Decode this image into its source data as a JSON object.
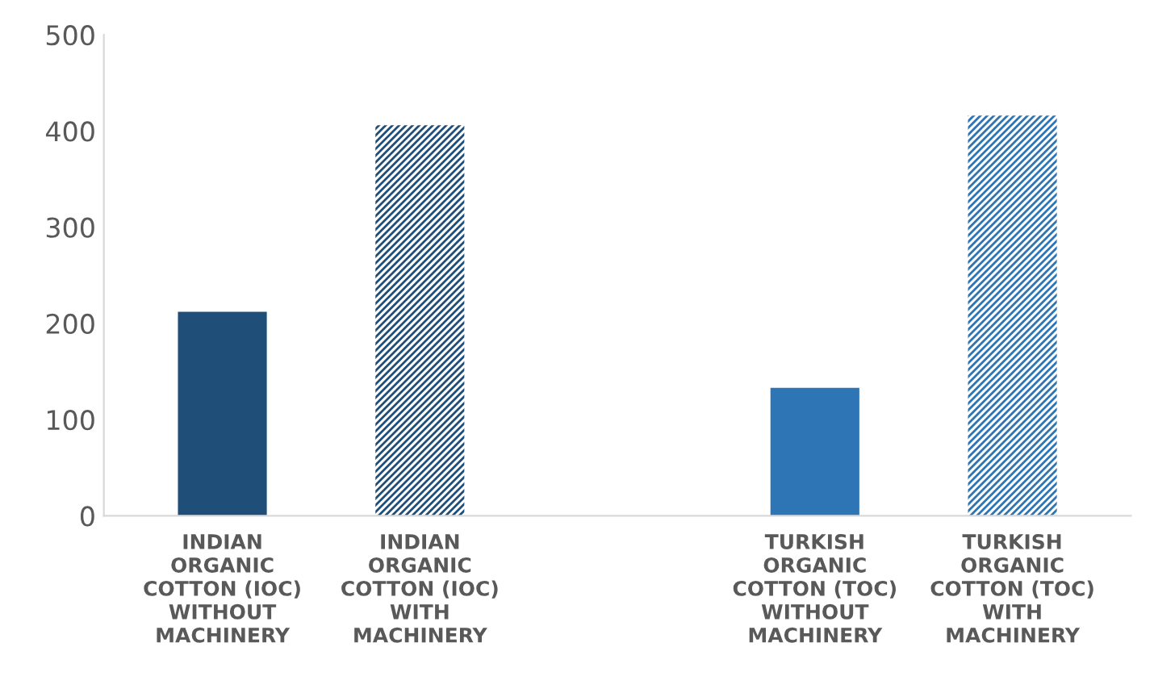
{
  "chart_data": {
    "type": "bar",
    "categories": [
      "INDIAN ORGANIC COTTON (IOC) WITHOUT MACHINERY",
      "INDIAN ORGANIC COTTON (IOC) WITH MACHINERY",
      null,
      "TURKISH ORGANIC COTTON (TOC) WITHOUT MACHINERY",
      "TURKISH ORGANIC COTTON (TOC) WITH MACHINERY"
    ],
    "values": [
      212,
      406,
      null,
      133,
      416
    ],
    "colors": [
      "#1f4e79",
      "#1f4e79",
      "#ffffff",
      "#2e75b6",
      "#2e75b6"
    ],
    "ylim": [
      0,
      500
    ],
    "yticks": [
      0,
      100,
      200,
      300,
      400,
      500
    ],
    "grid": false
  }
}
